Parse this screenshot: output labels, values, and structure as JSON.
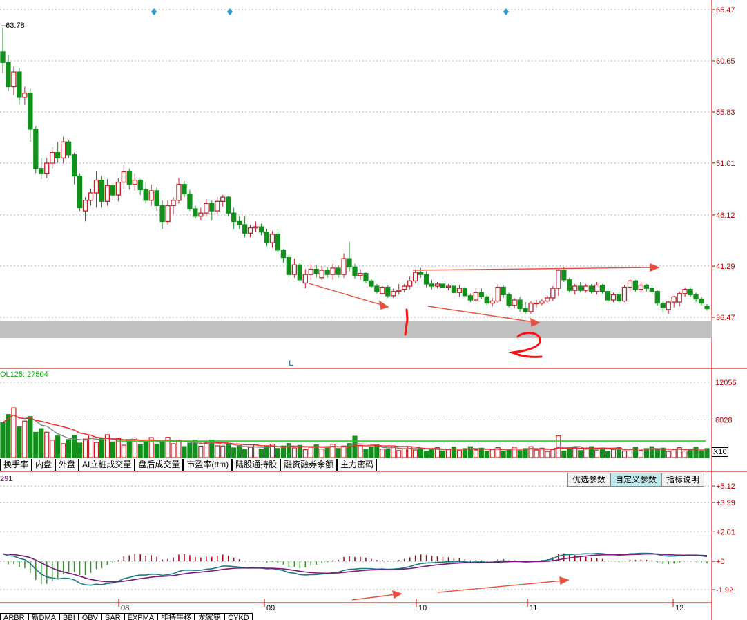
{
  "price_axis": {
    "labels": [
      "65.47",
      "60.65",
      "55.83",
      "51.01",
      "46.12",
      "41.29",
      "36.47"
    ],
    "min": 36.47,
    "max": 65.47
  },
  "high_label": "63.78",
  "zone_marker": "L",
  "volume_indicator": {
    "label": "OL125: 27504",
    "axis_labels": [
      "12056",
      "6028"
    ],
    "multiplier": "X10"
  },
  "tabs": [
    "换手率",
    "内盘",
    "外盘",
    "AI立桩成交量",
    "盘后成交量",
    "市盈率(ttm)",
    "陆股通持股",
    "融资融券余额",
    "主力密码"
  ],
  "macd": {
    "label": "291",
    "axis_labels": [
      "+5.12",
      "+3.99",
      "+2.01",
      "+0",
      "-1.92"
    ],
    "buttons": [
      "优选参数",
      "自定义参数",
      "指标说明"
    ],
    "active_button": "自定义参数"
  },
  "x_axis_labels": [
    "08",
    "09",
    "10",
    "11",
    "12"
  ],
  "bottom_tabs": [
    "ARBR",
    "新DMA",
    "BBI",
    "OBV",
    "SAR",
    "EXPMA",
    "能持牛移",
    "龙家铭",
    "CYKD"
  ],
  "annotations": [
    "1",
    "2"
  ],
  "colors": {
    "up": "#c0202a",
    "down": "#12901c",
    "ma_red": "#ff2020",
    "ma_green": "#20d020",
    "arrow": "#e85040"
  },
  "chart_data": {
    "type": "candlestick",
    "candles": [
      [
        61.5,
        63.8,
        59.5,
        60.5
      ],
      [
        60.5,
        61.2,
        57.8,
        58.2
      ],
      [
        58.2,
        60.1,
        57.4,
        59.6
      ],
      [
        59.6,
        60.0,
        56.5,
        57.2
      ],
      [
        57.2,
        58.2,
        56.5,
        57.6
      ],
      [
        57.6,
        58.0,
        53.0,
        54.2
      ],
      [
        54.2,
        54.5,
        50.0,
        50.5
      ],
      [
        50.5,
        51.5,
        49.5,
        50.0
      ],
      [
        50.0,
        51.5,
        49.6,
        51.0
      ],
      [
        51.0,
        52.5,
        50.5,
        52.0
      ],
      [
        52.0,
        53.0,
        51.0,
        51.5
      ],
      [
        51.5,
        53.5,
        51.0,
        53.0
      ],
      [
        53.0,
        53.2,
        51.5,
        51.8
      ],
      [
        51.8,
        52.0,
        49.0,
        49.8
      ],
      [
        49.8,
        50.0,
        46.5,
        46.8
      ],
      [
        46.5,
        47.8,
        45.5,
        47.5
      ],
      [
        47.5,
        48.6,
        47.0,
        48.2
      ],
      [
        48.2,
        50.2,
        46.8,
        49.4
      ],
      [
        49.4,
        49.8,
        46.8,
        47.4
      ],
      [
        47.4,
        49.5,
        47.0,
        48.9
      ],
      [
        48.9,
        49.2,
        47.5,
        48.0
      ],
      [
        48.0,
        49.6,
        47.4,
        49.2
      ],
      [
        49.2,
        50.8,
        48.6,
        50.2
      ],
      [
        50.2,
        50.5,
        48.5,
        49.0
      ],
      [
        49.0,
        50.0,
        48.4,
        49.4
      ],
      [
        49.4,
        49.5,
        48.0,
        48.5
      ],
      [
        48.5,
        49.2,
        47.2,
        47.5
      ],
      [
        47.5,
        49.0,
        47.0,
        48.4
      ],
      [
        48.4,
        48.8,
        46.5,
        47.0
      ],
      [
        47.0,
        47.5,
        44.8,
        45.5
      ],
      [
        45.5,
        47.5,
        45.2,
        47.0
      ],
      [
        47.0,
        47.8,
        46.2,
        47.5
      ],
      [
        47.5,
        49.6,
        47.2,
        49.0
      ],
      [
        49.0,
        49.3,
        47.8,
        48.1
      ],
      [
        48.1,
        48.5,
        46.5,
        46.7
      ],
      [
        46.7,
        47.0,
        45.8,
        46.0
      ],
      [
        46.0,
        46.8,
        45.6,
        46.3
      ],
      [
        46.3,
        47.6,
        46.0,
        47.2
      ],
      [
        47.2,
        47.5,
        45.6,
        46.5
      ],
      [
        46.5,
        47.8,
        46.2,
        47.4
      ],
      [
        47.4,
        48.0,
        46.9,
        47.8
      ],
      [
        47.8,
        47.9,
        46.0,
        46.3
      ],
      [
        46.3,
        46.8,
        44.8,
        45.5
      ],
      [
        45.5,
        46.0,
        44.8,
        45.2
      ],
      [
        45.2,
        46.0,
        44.0,
        44.4
      ],
      [
        44.4,
        45.2,
        44.0,
        44.9
      ],
      [
        44.9,
        45.5,
        44.5,
        45.0
      ],
      [
        45.0,
        45.3,
        44.2,
        44.5
      ],
      [
        44.5,
        44.8,
        43.2,
        43.5
      ],
      [
        43.5,
        44.6,
        43.0,
        44.3
      ],
      [
        44.3,
        44.8,
        42.6,
        42.8
      ],
      [
        42.8,
        42.9,
        41.6,
        42.1
      ],
      [
        42.1,
        42.4,
        40.2,
        40.5
      ],
      [
        40.5,
        42.0,
        40.2,
        41.4
      ],
      [
        41.4,
        41.6,
        39.8,
        40.0
      ],
      [
        39.7,
        41.0,
        39.2,
        40.5
      ],
      [
        40.5,
        41.5,
        40.0,
        41.0
      ],
      [
        41.0,
        41.4,
        40.2,
        40.6
      ],
      [
        40.2,
        41.3,
        40.0,
        40.9
      ],
      [
        40.9,
        41.2,
        40.2,
        40.5
      ],
      [
        40.5,
        41.5,
        40.0,
        41.1
      ],
      [
        41.1,
        41.3,
        40.2,
        40.5
      ],
      [
        40.5,
        42.5,
        40.2,
        42.0
      ],
      [
        42.0,
        43.6,
        40.8,
        41.2
      ],
      [
        41.2,
        41.5,
        40.1,
        40.4
      ],
      [
        40.4,
        41.0,
        40.0,
        40.6
      ],
      [
        40.6,
        40.7,
        39.7,
        39.9
      ],
      [
        39.9,
        40.1,
        39.2,
        39.4
      ],
      [
        39.4,
        39.6,
        38.7,
        38.9
      ],
      [
        38.7,
        39.4,
        38.6,
        39.3
      ],
      [
        39.3,
        39.5,
        38.3,
        38.5
      ],
      [
        38.5,
        39.2,
        38.3,
        38.9
      ],
      [
        38.9,
        39.6,
        38.6,
        39.0
      ],
      [
        39.1,
        39.6,
        38.8,
        39.4
      ],
      [
        39.4,
        40.3,
        39.1,
        39.9
      ],
      [
        39.9,
        41.0,
        39.7,
        40.7
      ],
      [
        40.7,
        41.1,
        40.2,
        40.5
      ],
      [
        40.5,
        40.8,
        39.3,
        39.6
      ],
      [
        39.6,
        40.0,
        39.1,
        39.4
      ],
      [
        39.4,
        39.8,
        39.2,
        39.6
      ],
      [
        39.6,
        39.9,
        39.1,
        39.3
      ],
      [
        39.3,
        39.6,
        39.0,
        39.4
      ],
      [
        39.4,
        39.6,
        38.6,
        38.8
      ],
      [
        38.8,
        39.5,
        38.4,
        39.2
      ],
      [
        39.2,
        39.3,
        38.3,
        38.5
      ],
      [
        38.5,
        38.7,
        37.9,
        38.1
      ],
      [
        38.1,
        39.2,
        37.9,
        38.8
      ],
      [
        38.8,
        39.2,
        38.2,
        38.4
      ],
      [
        38.4,
        38.6,
        37.6,
        37.8
      ],
      [
        37.8,
        38.3,
        37.5,
        38.0
      ],
      [
        38.0,
        39.6,
        37.8,
        39.3
      ],
      [
        39.3,
        39.5,
        38.3,
        38.6
      ],
      [
        38.6,
        38.8,
        37.4,
        37.6
      ],
      [
        37.6,
        38.3,
        37.3,
        38.1
      ],
      [
        38.1,
        38.4,
        37.0,
        37.3
      ],
      [
        37.3,
        37.9,
        36.8,
        37.0
      ],
      [
        37.0,
        38.0,
        36.8,
        37.8
      ],
      [
        37.8,
        38.1,
        37.4,
        37.8
      ],
      [
        37.8,
        38.2,
        37.6,
        38.0
      ],
      [
        38.0,
        38.5,
        37.8,
        38.3
      ],
      [
        38.3,
        39.4,
        38.0,
        39.2
      ],
      [
        39.2,
        41.0,
        38.5,
        40.9
      ],
      [
        40.9,
        41.2,
        39.8,
        40.0
      ],
      [
        40.0,
        40.2,
        38.8,
        39.0
      ],
      [
        39.0,
        39.6,
        38.6,
        39.4
      ],
      [
        39.4,
        39.8,
        38.8,
        39.0
      ],
      [
        39.0,
        39.6,
        38.8,
        39.4
      ],
      [
        39.4,
        39.6,
        38.7,
        38.9
      ],
      [
        38.9,
        39.8,
        38.6,
        39.5
      ],
      [
        39.5,
        39.6,
        38.7,
        38.9
      ],
      [
        38.9,
        39.2,
        37.9,
        38.1
      ],
      [
        38.1,
        38.8,
        37.9,
        38.6
      ],
      [
        38.6,
        38.9,
        37.8,
        38.0
      ],
      [
        38.0,
        39.5,
        37.9,
        39.3
      ],
      [
        39.3,
        40.1,
        38.8,
        39.9
      ],
      [
        39.9,
        40.0,
        38.9,
        39.1
      ],
      [
        39.1,
        39.8,
        38.8,
        39.5
      ],
      [
        39.5,
        39.6,
        38.9,
        39.2
      ],
      [
        39.2,
        39.5,
        38.7,
        38.9
      ],
      [
        38.9,
        39.0,
        37.6,
        37.8
      ],
      [
        37.8,
        38.0,
        36.9,
        37.4
      ],
      [
        37.2,
        38.0,
        36.8,
        37.9
      ],
      [
        37.9,
        38.5,
        37.4,
        38.4
      ],
      [
        37.9,
        38.9,
        37.5,
        38.7
      ],
      [
        38.7,
        39.3,
        38.4,
        39.1
      ],
      [
        39.1,
        39.3,
        38.4,
        38.6
      ],
      [
        38.6,
        38.8,
        37.9,
        38.2
      ],
      [
        38.2,
        38.4,
        37.6,
        37.8
      ],
      [
        37.5,
        37.7,
        37.1,
        37.3
      ]
    ],
    "x_labels": [
      "08",
      "09",
      "10",
      "11",
      "12"
    ],
    "y_range": [
      36.47,
      65.47
    ],
    "macd_y_range": [
      -1.92,
      5.12
    ]
  }
}
